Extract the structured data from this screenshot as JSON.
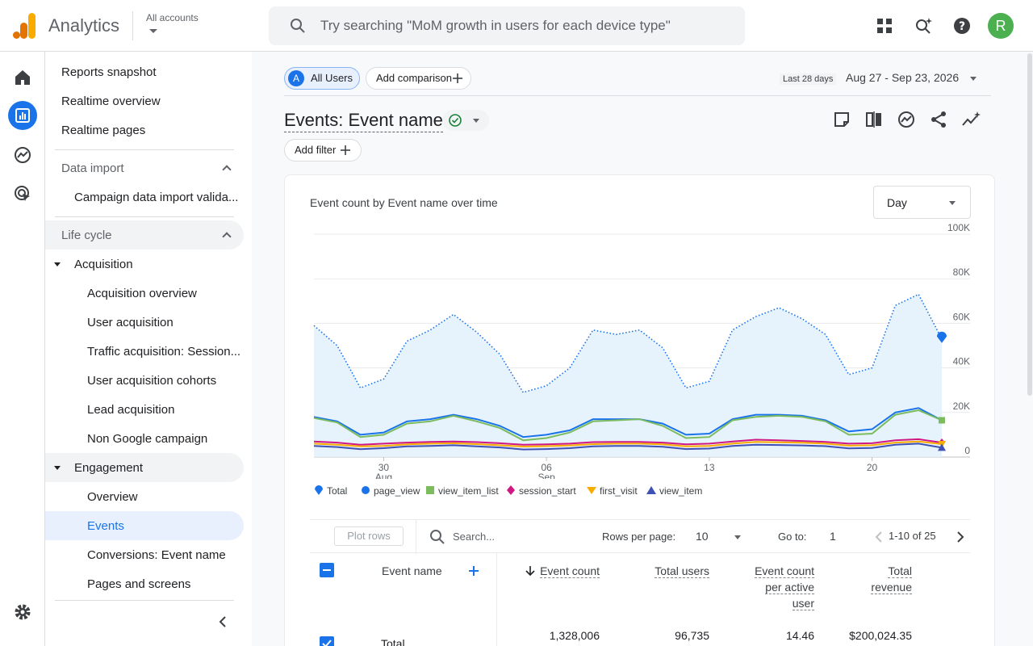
{
  "header": {
    "app_name": "Analytics",
    "account_label": "All accounts",
    "search_placeholder": "Try searching \"MoM growth in users for each device type\"",
    "avatar_initial": "R"
  },
  "nav": {
    "top_items": [
      "Reports snapshot",
      "Realtime overview",
      "Realtime pages"
    ],
    "data_import": {
      "label": "Data import",
      "items": [
        "Campaign data import valida..."
      ]
    },
    "lifecycle": {
      "label": "Life cycle",
      "acquisition": {
        "label": "Acquisition",
        "items": [
          "Acquisition overview",
          "User acquisition",
          "Traffic acquisition: Session...",
          "User acquisition cohorts",
          "Lead acquisition",
          "Non Google campaign"
        ]
      },
      "engagement": {
        "label": "Engagement",
        "items": [
          "Overview",
          "Events",
          "Conversions: Event name",
          "Pages and screens"
        ]
      }
    }
  },
  "main": {
    "comparison": {
      "all_users_badge": "A",
      "all_users": "All Users",
      "add_comparison": "Add comparison"
    },
    "date": {
      "label": "Last 28 days",
      "range": "Aug 27 - Sep 23, 2026"
    },
    "title": "Events: Event name",
    "add_filter": "Add filter",
    "chart_card": {
      "title": "Event count by Event name over time",
      "granularity": "Day"
    }
  },
  "chart_data": {
    "type": "line",
    "title": "Event count by Event name over time",
    "x_tick_labels": [
      {
        "day": "30",
        "month": "Aug"
      },
      {
        "day": "06",
        "month": "Sep"
      },
      {
        "day": "13",
        "month": ""
      },
      {
        "day": "20",
        "month": ""
      }
    ],
    "y_tick_labels": [
      "100K",
      "80K",
      "60K",
      "40K",
      "20K",
      "0"
    ],
    "ylim": [
      0,
      100000
    ],
    "x_start": "2026-08-27",
    "x_end": "2026-09-23",
    "series": [
      {
        "name": "Total",
        "color": "#1a73e8",
        "style": "dotted-area",
        "marker": "pin",
        "values": [
          59000,
          50000,
          31000,
          35000,
          52000,
          57000,
          64000,
          56000,
          46000,
          29000,
          32000,
          40000,
          57000,
          55000,
          57000,
          49000,
          31000,
          34000,
          57000,
          63000,
          67000,
          62000,
          55000,
          37000,
          40000,
          68000,
          73000,
          53000
        ]
      },
      {
        "name": "page_view",
        "color": "#1a73e8",
        "style": "line",
        "marker": "circle",
        "values": [
          18000,
          16000,
          10000,
          11000,
          16000,
          17000,
          19000,
          17000,
          14000,
          9000,
          10000,
          12000,
          17000,
          17000,
          17000,
          15000,
          10000,
          10500,
          17000,
          19000,
          19000,
          18500,
          16500,
          11500,
          12500,
          20000,
          22000,
          16500
        ]
      },
      {
        "name": "view_item_list",
        "color": "#7cbb5e",
        "style": "line",
        "marker": "square",
        "values": [
          17500,
          15500,
          9000,
          10000,
          15000,
          16000,
          18500,
          16000,
          13000,
          7500,
          8500,
          11000,
          16000,
          16500,
          17000,
          14000,
          8500,
          9000,
          16500,
          18000,
          18500,
          18000,
          16000,
          10000,
          10500,
          19000,
          21000,
          16500
        ]
      },
      {
        "name": "session_start",
        "color": "#d01884",
        "style": "line",
        "marker": "diamond",
        "values": [
          7000,
          6500,
          5500,
          6000,
          6500,
          6800,
          7000,
          6700,
          6200,
          5500,
          5700,
          6000,
          6700,
          6800,
          6800,
          6500,
          5700,
          6000,
          7000,
          7800,
          7500,
          7200,
          6800,
          6000,
          6200,
          7500,
          8000,
          6500
        ]
      },
      {
        "name": "first_visit",
        "color": "#f9ab00",
        "style": "line",
        "marker": "triangle-down",
        "values": [
          6000,
          5500,
          4800,
          5000,
          5700,
          6000,
          6200,
          5800,
          5300,
          4700,
          4900,
          5200,
          5800,
          6000,
          6000,
          5700,
          4800,
          5000,
          6000,
          6800,
          6600,
          6400,
          6000,
          5100,
          5300,
          6500,
          7000,
          5800
        ]
      },
      {
        "name": "view_item",
        "color": "#3f51b5",
        "style": "line",
        "marker": "triangle",
        "values": [
          5000,
          4500,
          3500,
          4000,
          4800,
          5000,
          5300,
          4800,
          4300,
          3400,
          3600,
          4000,
          4800,
          5000,
          5000,
          4600,
          3600,
          3800,
          5000,
          5500,
          5400,
          5200,
          4900,
          3900,
          4100,
          5500,
          6000,
          4200
        ]
      }
    ]
  },
  "table": {
    "plot_rows": "Plot rows",
    "search_placeholder": "Search...",
    "rows_per_page_label": "Rows per page:",
    "rows_per_page": "10",
    "goto_label": "Go to:",
    "goto_value": "1",
    "pagination": "1-10 of 25",
    "columns": {
      "event_name": "Event name",
      "event_count": "Event count",
      "total_users": "Total users",
      "event_count_per_user": [
        "Event count",
        "per active",
        "user"
      ],
      "total_revenue": [
        "Total",
        "revenue"
      ]
    },
    "total_row": {
      "label": "Total",
      "event_count": "1,328,006",
      "total_users": "96,735",
      "per_user": "14.46",
      "revenue": "$200,024.35"
    }
  }
}
